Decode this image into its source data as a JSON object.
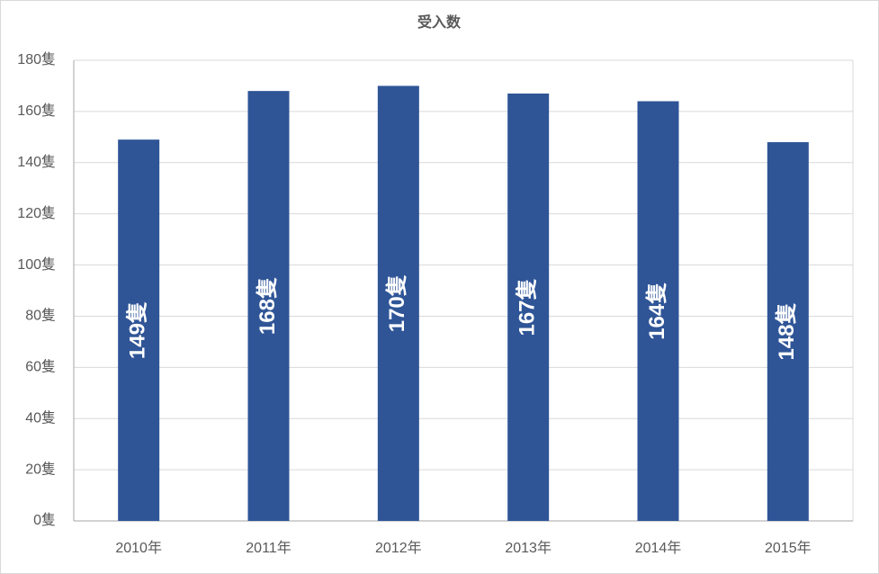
{
  "chart_data": {
    "type": "bar",
    "title": "受入数",
    "categories": [
      "2010年",
      "2011年",
      "2012年",
      "2013年",
      "2014年",
      "2015年"
    ],
    "values": [
      149,
      168,
      170,
      167,
      164,
      148
    ],
    "value_labels": [
      "149隻",
      "168隻",
      "170隻",
      "167隻",
      "164隻",
      "148隻"
    ],
    "color": "#2f5597",
    "ylim": [
      0,
      180
    ],
    "yticks": [
      {
        "value": 0,
        "label": "0隻"
      },
      {
        "value": 20,
        "label": "20隻"
      },
      {
        "value": 40,
        "label": "40隻"
      },
      {
        "value": 60,
        "label": "60隻"
      },
      {
        "value": 80,
        "label": "80隻"
      },
      {
        "value": 100,
        "label": "100隻"
      },
      {
        "value": 120,
        "label": "120隻"
      },
      {
        "value": 140,
        "label": "140隻"
      },
      {
        "value": 160,
        "label": "160隻"
      },
      {
        "value": 180,
        "label": "180隻"
      }
    ],
    "grid": true
  }
}
